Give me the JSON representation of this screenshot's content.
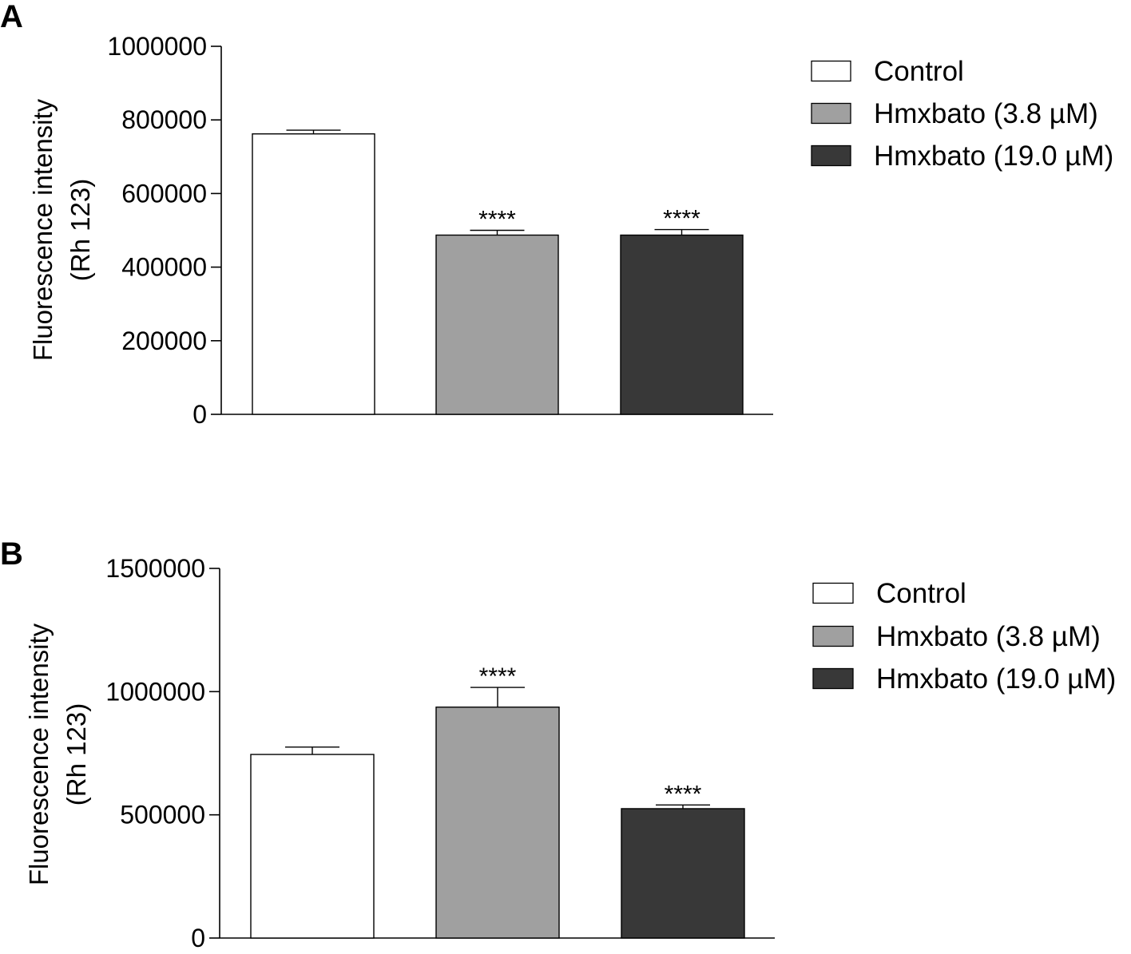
{
  "chart_data": [
    {
      "panel": "A",
      "type": "bar",
      "categories": [
        "Control",
        "Hmxbato (3.8 µM)",
        "Hmxbato (19.0 µM)"
      ],
      "values": [
        762000,
        487000,
        487000
      ],
      "errors": [
        10000,
        13000,
        15000
      ],
      "significance": [
        "",
        "****",
        "****"
      ],
      "colors": [
        "#ffffff",
        "#a0a0a0",
        "#383838"
      ],
      "ylabel": [
        "Fluorescence intensity",
        "(Rh 123)"
      ],
      "xlabel": "",
      "ylim": [
        0,
        1000000
      ],
      "yticks": [
        0,
        200000,
        400000,
        600000,
        800000,
        1000000
      ],
      "ytick_labels": [
        "0",
        "200000",
        "400000",
        "600000",
        "800000",
        "1000000"
      ],
      "legend": [
        "Control",
        "Hmxbato (3.8 µM)",
        "Hmxbato (19.0 µM)"
      ],
      "legend_position": "top-right"
    },
    {
      "panel": "B",
      "type": "bar",
      "categories": [
        "Control",
        "Hmxbato (3.8 µM)",
        "Hmxbato (19.0 µM)"
      ],
      "values": [
        745000,
        937000,
        525000
      ],
      "errors": [
        30000,
        80000,
        15000
      ],
      "significance": [
        "",
        "****",
        "****"
      ],
      "colors": [
        "#ffffff",
        "#a0a0a0",
        "#383838"
      ],
      "ylabel": [
        "Fluorescence intensity",
        "(Rh 123)"
      ],
      "xlabel": "",
      "ylim": [
        0,
        1500000
      ],
      "yticks": [
        0,
        500000,
        1000000,
        1500000
      ],
      "ytick_labels": [
        "0",
        "500000",
        "1000000",
        "1500000"
      ],
      "legend": [
        "Control",
        "Hmxbato (3.8 µM)",
        "Hmxbato (19.0 µM)"
      ],
      "legend_position": "top-right"
    }
  ]
}
